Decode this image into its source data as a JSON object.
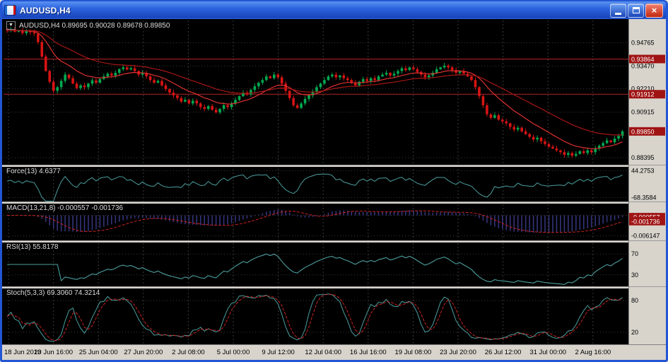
{
  "window": {
    "title": "AUDUSD,H4"
  },
  "icons": {
    "close": "×",
    "dropdown": "▼",
    "app": "chart-icon",
    "minimize": "minimize-glyph",
    "maximize": "maximize-glyph"
  },
  "chart_data": [
    {
      "type": "candlestick",
      "symbol": "AUDUSD",
      "timeframe": "H4",
      "info_label": "AUDUSD,H4 0.89695 0.90028 0.89678 0.89850",
      "ohlc": {
        "open": 0.89695,
        "high": 0.90028,
        "low": 0.89678,
        "close": 0.8985
      },
      "ylim": [
        0.88,
        0.96
      ],
      "y_ticks": [
        0.94765,
        0.9347,
        0.9221,
        0.90915,
        0.88395
      ],
      "price_lines": [
        0.93864,
        0.91912
      ],
      "current_price": 0.8985,
      "up_color": "#00a94f",
      "down_color": "#d81414",
      "ma": [
        {
          "period": 13,
          "color": "#e03030"
        },
        {
          "period": 34,
          "color": "#a81616"
        }
      ],
      "x_ticks": [
        "18 Jun 2013",
        "20 Jun 16:00",
        "25 Jun 04:00",
        "27 Jun 20:00",
        "2 Jul 08:00",
        "5 Jul 00:00",
        "9 Jul 12:00",
        "12 Jul 04:00",
        "16 Jul 16:00",
        "19 Jul 08:00",
        "23 Jul 20:00",
        "26 Jul 12:00",
        "31 Jul 00:00",
        "2 Aug 16:00"
      ],
      "closes": [
        0.9545,
        0.9552,
        0.9538,
        0.9545,
        0.953,
        0.9542,
        0.9535,
        0.9528,
        0.948,
        0.94,
        0.932,
        0.926,
        0.921,
        0.923,
        0.9265,
        0.93,
        0.928,
        0.925,
        0.9225,
        0.924,
        0.923,
        0.925,
        0.9268,
        0.9255,
        0.9275,
        0.929,
        0.9305,
        0.9295,
        0.931,
        0.933,
        0.934,
        0.9328,
        0.9335,
        0.932,
        0.93,
        0.931,
        0.929,
        0.927,
        0.9255,
        0.9265,
        0.924,
        0.922,
        0.92,
        0.9185,
        0.917,
        0.915,
        0.916,
        0.914,
        0.9155,
        0.914,
        0.912,
        0.911,
        0.9125,
        0.9105,
        0.909,
        0.911,
        0.913,
        0.912,
        0.914,
        0.916,
        0.918,
        0.92,
        0.919,
        0.9215,
        0.9235,
        0.9255,
        0.927,
        0.929,
        0.928,
        0.93,
        0.9285,
        0.925,
        0.921,
        0.917,
        0.913,
        0.9115,
        0.914,
        0.9165,
        0.9185,
        0.9205,
        0.923,
        0.925,
        0.927,
        0.929,
        0.93,
        0.9285,
        0.9295,
        0.928,
        0.927,
        0.9255,
        0.924,
        0.926,
        0.9275,
        0.9265,
        0.928,
        0.927,
        0.929,
        0.93,
        0.931,
        0.9295,
        0.9305,
        0.932,
        0.9335,
        0.9325,
        0.934,
        0.933,
        0.9315,
        0.93,
        0.9285,
        0.9295,
        0.931,
        0.933,
        0.934,
        0.935,
        0.934,
        0.9325,
        0.931,
        0.932,
        0.9305,
        0.929,
        0.927,
        0.923,
        0.918,
        0.913,
        0.908,
        0.906,
        0.9075,
        0.905,
        0.904,
        0.903,
        0.901,
        0.8995,
        0.9005,
        0.8985,
        0.897,
        0.8955,
        0.894,
        0.895,
        0.893,
        0.8915,
        0.89,
        0.889,
        0.888,
        0.887,
        0.8855,
        0.8865,
        0.885,
        0.886,
        0.8875,
        0.8865,
        0.888,
        0.887,
        0.889,
        0.8905,
        0.892,
        0.8935,
        0.8925,
        0.8945,
        0.896,
        0.8985
      ]
    },
    {
      "type": "line",
      "indicator": "Force",
      "label": "Force(13) 4.6377",
      "period": 13,
      "current": 4.6377,
      "ylim": [
        -85,
        60
      ],
      "y_ticks": [
        44.2753,
        -68.3584
      ],
      "color": "#4c9e9e"
    },
    {
      "type": "macd",
      "indicator": "MACD",
      "label": "MACD(13,21,8) -0.000557 -0.001736",
      "fast": 13,
      "slow": 21,
      "signal": 8,
      "current_main": -0.000557,
      "current_signal": -0.001736,
      "ylim": [
        -0.0075,
        0.0035
      ],
      "y_ticks": [
        0.0,
        -0.006147
      ],
      "badges": [
        -0.000557,
        -0.001736
      ],
      "hist_color": "#34347c",
      "signal_color": "#cc2222"
    },
    {
      "type": "line",
      "indicator": "RSI",
      "label": "RSI(13) 55.8178",
      "period": 13,
      "current": 55.8178,
      "ylim": [
        8,
        92
      ],
      "levels": [
        70,
        30
      ],
      "color": "#4c9e9e"
    },
    {
      "type": "stochastic",
      "indicator": "Stochastic",
      "label": "Stoch(5,3,3) 69.3060 74.3214",
      "k_period": 5,
      "d_period": 3,
      "slowing": 3,
      "current_k": 69.306,
      "current_d": 74.3214,
      "ylim": [
        -3,
        103
      ],
      "levels": [
        80,
        20
      ],
      "k_color": "#4c9e9e",
      "d_color": "#cc2222"
    }
  ]
}
